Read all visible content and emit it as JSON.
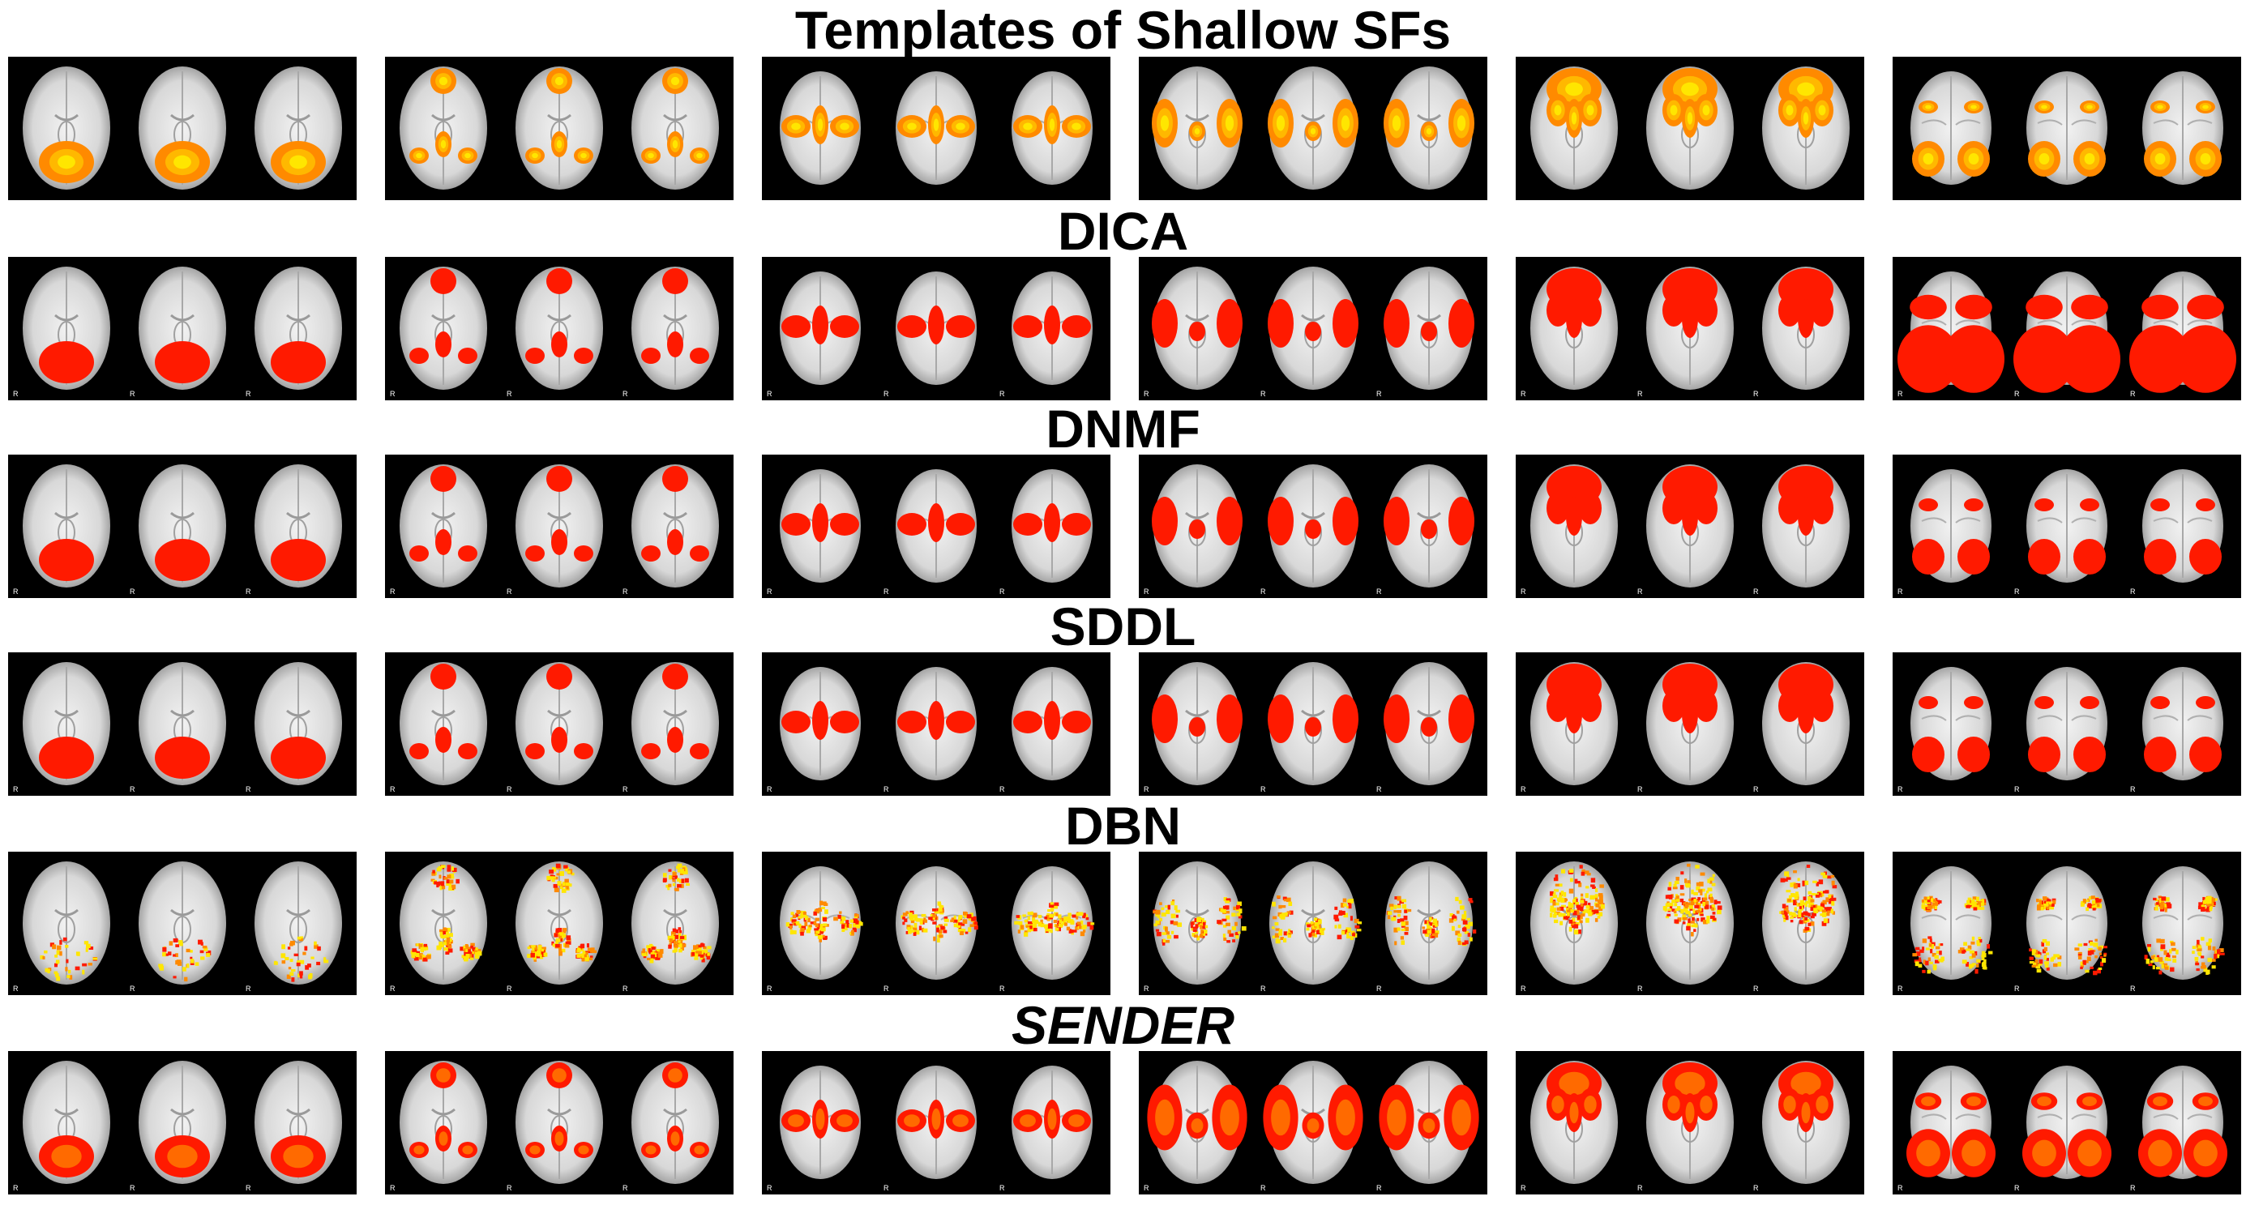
{
  "figure": {
    "rows": [
      {
        "title": "Templates of Shallow SFs",
        "italic": false,
        "style": "template",
        "show_r": false
      },
      {
        "title": "DICA",
        "italic": false,
        "style": "red",
        "show_r": true
      },
      {
        "title": "DNMF",
        "italic": false,
        "style": "red",
        "show_r": true
      },
      {
        "title": "SDDL",
        "italic": false,
        "style": "red",
        "show_r": true
      },
      {
        "title": "DBN",
        "italic": false,
        "style": "speckle",
        "show_r": true
      },
      {
        "title": "SENDER",
        "italic": true,
        "style": "mixed",
        "show_r": true
      }
    ],
    "columns": [
      {
        "pattern": "occipital",
        "slice": "inferior"
      },
      {
        "pattern": "frontal-small",
        "slice": "inferior"
      },
      {
        "pattern": "motor",
        "slice": "superior"
      },
      {
        "pattern": "lateral",
        "slice": "middle"
      },
      {
        "pattern": "frontal-large",
        "slice": "inferior"
      },
      {
        "pattern": "parietal",
        "slice": "superior"
      }
    ],
    "orientation_label": "R",
    "colors": {
      "background": "#000000",
      "brain": "#d8d8d8",
      "activation_red": "#ff1a00",
      "activation_yellow": "#ffe600",
      "activation_orange": "#ff8a00"
    }
  }
}
